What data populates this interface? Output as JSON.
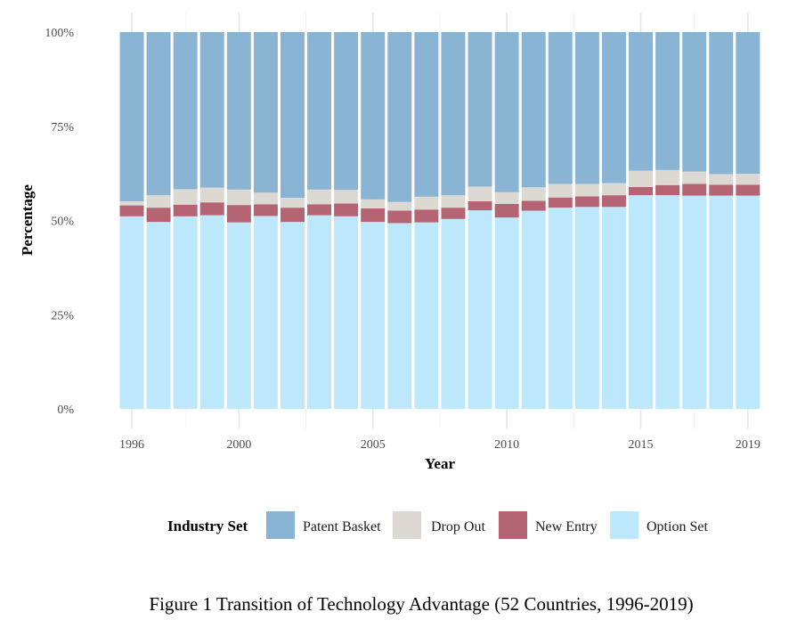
{
  "chart_data": {
    "type": "bar",
    "stacked": true,
    "percent": true,
    "caption": "Figure 1 Transition of Technology Advantage (52 Countries, 1996-2019)",
    "xlabel": "Year",
    "ylabel": "Percentage",
    "ylim": [
      0,
      100
    ],
    "yticks": [
      "0%",
      "25%",
      "50%",
      "75%",
      "100%"
    ],
    "xticks": [
      "1996",
      "2000",
      "2005",
      "2010",
      "2015",
      "2019"
    ],
    "grid": true,
    "legend": {
      "title": "Industry Set",
      "position": "bottom"
    },
    "categories": [
      "1996",
      "1997",
      "1998",
      "1999",
      "2000",
      "2001",
      "2002",
      "2003",
      "2004",
      "2005",
      "2006",
      "2007",
      "2008",
      "2009",
      "2010",
      "2011",
      "2012",
      "2013",
      "2014",
      "2015",
      "2016",
      "2017",
      "2018",
      "2019"
    ],
    "series": [
      {
        "name": "Patent Basket",
        "color": "#8AB4D4",
        "values": [
          44.9,
          43.3,
          41.7,
          41.3,
          41.8,
          42.6,
          44.0,
          41.8,
          41.9,
          44.4,
          45.1,
          43.7,
          43.3,
          41.0,
          42.5,
          41.2,
          40.3,
          40.3,
          40.1,
          36.8,
          36.6,
          37.0,
          37.7,
          37.6
        ]
      },
      {
        "name": "Drop Out",
        "color": "#DCD9D3",
        "values": [
          1.1,
          3.3,
          4.1,
          3.9,
          4.1,
          3.1,
          2.6,
          3.9,
          3.6,
          2.4,
          2.3,
          3.4,
          3.3,
          3.9,
          3.1,
          3.6,
          3.6,
          3.3,
          3.2,
          4.3,
          4.0,
          3.3,
          2.8,
          2.9
        ]
      },
      {
        "name": "New Entry",
        "color": "#B56473",
        "values": [
          2.9,
          3.8,
          3.1,
          3.4,
          4.6,
          3.1,
          3.8,
          2.9,
          3.4,
          3.6,
          3.3,
          3.4,
          3.0,
          2.4,
          3.6,
          2.6,
          2.7,
          2.8,
          3.1,
          2.2,
          2.7,
          3.1,
          2.9,
          2.9
        ]
      },
      {
        "name": "Option Set",
        "color": "#BDE8FC",
        "values": [
          51.1,
          49.6,
          51.1,
          51.4,
          49.5,
          51.2,
          49.6,
          51.4,
          51.1,
          49.6,
          49.3,
          49.5,
          50.4,
          52.7,
          50.8,
          52.6,
          53.4,
          53.6,
          53.6,
          56.7,
          56.7,
          56.6,
          56.6,
          56.6
        ]
      }
    ]
  }
}
